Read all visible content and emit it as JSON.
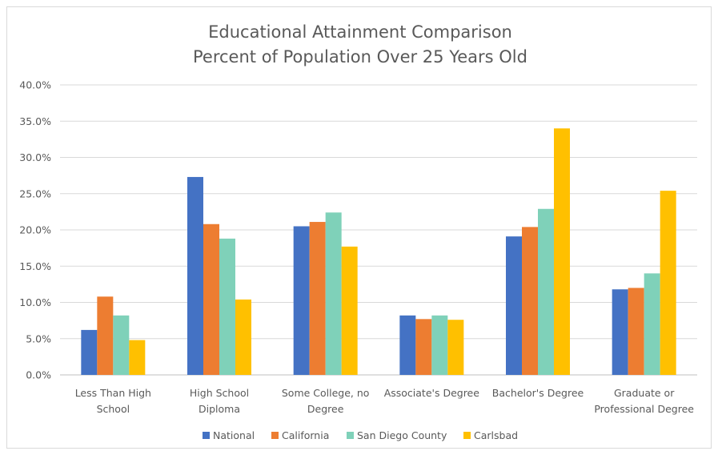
{
  "chart_data": {
    "type": "bar",
    "title": [
      "Educational Attainment Comparison",
      "Percent of Population Over 25 Years Old"
    ],
    "xlabel": "",
    "ylabel": "",
    "ylim": [
      0,
      40
    ],
    "yticks": [
      "0.0%",
      "5.0%",
      "10.0%",
      "15.0%",
      "20.0%",
      "25.0%",
      "30.0%",
      "35.0%",
      "40.0%"
    ],
    "categories": [
      [
        "Less Than High",
        "School"
      ],
      [
        "High School",
        "Diploma"
      ],
      [
        "Some College, no",
        "Degree"
      ],
      [
        "Associate's Degree"
      ],
      [
        "Bachelor's Degree"
      ],
      [
        "Graduate or",
        "Professional Degree"
      ]
    ],
    "series": [
      {
        "name": "National",
        "color": "#4472c4",
        "values": [
          6.2,
          27.3,
          20.5,
          8.2,
          19.1,
          11.8
        ]
      },
      {
        "name": "California",
        "color": "#ed7d31",
        "values": [
          10.8,
          20.8,
          21.1,
          7.7,
          20.4,
          12.0
        ]
      },
      {
        "name": "San Diego County",
        "color": "#7fd1b9",
        "values": [
          8.2,
          18.8,
          22.4,
          8.2,
          22.9,
          14.0
        ]
      },
      {
        "name": "Carlsbad",
        "color": "#ffc000",
        "values": [
          4.8,
          10.4,
          17.7,
          7.6,
          34.0,
          25.4
        ]
      }
    ],
    "grid": true,
    "legend_position": "bottom"
  }
}
